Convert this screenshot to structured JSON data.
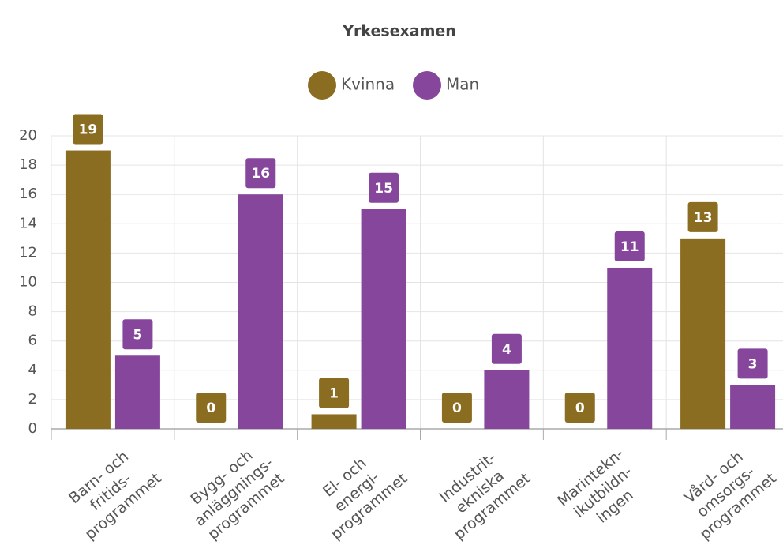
{
  "chart_data": {
    "type": "bar",
    "title": "Yrkesexamen",
    "categories": [
      [
        "Barn- och",
        "fritids-",
        "programmet"
      ],
      [
        "Bygg- och",
        "anläggnings-",
        "programmet"
      ],
      [
        "El- och",
        "energi-",
        "programmet"
      ],
      [
        "Industrit-",
        "ekniska",
        "programmet"
      ],
      [
        "Marintekn-",
        "ikutbildn-",
        "ingen"
      ],
      [
        "Vård- och",
        "omsorgs-",
        "programmet"
      ]
    ],
    "series": [
      {
        "name": "Kvinna",
        "color": "#8b6d22",
        "values": [
          19,
          0,
          1,
          0,
          0,
          13
        ]
      },
      {
        "name": "Man",
        "color": "#86469c",
        "values": [
          5,
          16,
          15,
          4,
          11,
          3
        ]
      }
    ],
    "ylim": [
      0,
      20
    ],
    "yticks": [
      0,
      2,
      4,
      6,
      8,
      10,
      12,
      14,
      16,
      18,
      20
    ],
    "grid": true,
    "legend": "top"
  }
}
